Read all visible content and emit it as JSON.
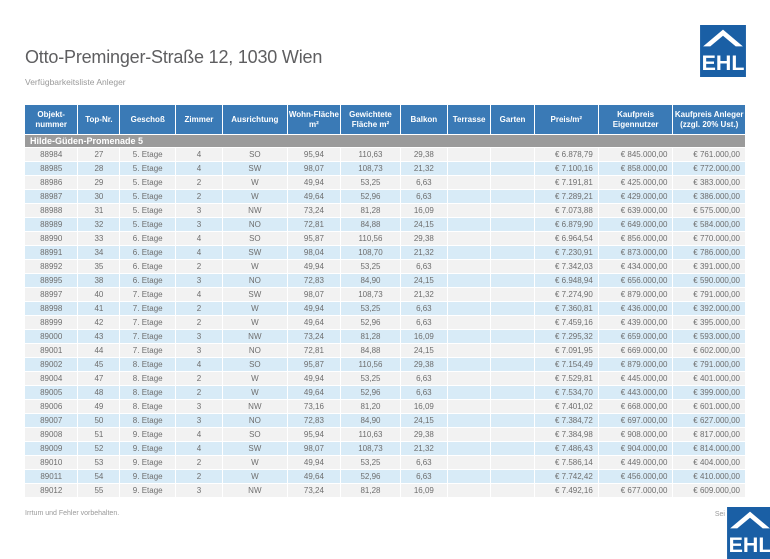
{
  "page": {
    "title": "Otto-Preminger-Straße 12, 1030 Wien",
    "subtitle": "Verfügbarkeitsliste Anleger",
    "footer_left": "Irrtum und Fehler vorbehalten.",
    "footer_right": "Sei",
    "logo_text": "EHL"
  },
  "colors": {
    "header_blue": "#3a7ab6",
    "section_gray": "#9b9b9b",
    "row_light": "#f2f2f2",
    "row_blue": "#d8ebf7",
    "logo_blue": "#1a5fa5"
  },
  "table": {
    "section": "Hilde-Güden-Promenade 5",
    "columns": [
      "Objekt-nummer",
      "Top-Nr.",
      "Geschoß",
      "Zimmer",
      "Ausrichtung",
      "Wohn-Fläche m²",
      "Gewichtete Fläche m²",
      "Balkon",
      "Terrasse",
      "Garten",
      "Preis/m²",
      "Kaufpreis Eigennutzer",
      "Kaufpreis Anleger (zzgl. 20% Ust.)"
    ],
    "column_keys": [
      "objektnummer",
      "top_nr",
      "geschoss",
      "zimmer",
      "ausrichtung",
      "wohnflaeche_m2",
      "gewichtete_flaeche_m2",
      "balkon",
      "terrasse",
      "garten",
      "preis_m2",
      "kaufpreis_eigennutzer",
      "kaufpreis_anleger"
    ],
    "rows": [
      [
        "88984",
        "27",
        "5. Etage",
        "4",
        "SO",
        "95,94",
        "110,63",
        "29,38",
        "",
        "",
        "€ 6.878,79",
        "€ 845.000,00",
        "€ 761.000,00"
      ],
      [
        "88985",
        "28",
        "5. Etage",
        "4",
        "SW",
        "98,07",
        "108,73",
        "21,32",
        "",
        "",
        "€ 7.100,16",
        "€ 858.000,00",
        "€ 772.000,00"
      ],
      [
        "88986",
        "29",
        "5. Etage",
        "2",
        "W",
        "49,94",
        "53,25",
        "6,63",
        "",
        "",
        "€ 7.191,81",
        "€ 425.000,00",
        "€ 383.000,00"
      ],
      [
        "88987",
        "30",
        "5. Etage",
        "2",
        "W",
        "49,64",
        "52,96",
        "6,63",
        "",
        "",
        "€ 7.289,21",
        "€ 429.000,00",
        "€ 386.000,00"
      ],
      [
        "88988",
        "31",
        "5. Etage",
        "3",
        "NW",
        "73,24",
        "81,28",
        "16,09",
        "",
        "",
        "€ 7.073,88",
        "€ 639.000,00",
        "€ 575.000,00"
      ],
      [
        "88989",
        "32",
        "5. Etage",
        "3",
        "NO",
        "72,81",
        "84,88",
        "24,15",
        "",
        "",
        "€ 6.879,90",
        "€ 649.000,00",
        "€ 584.000,00"
      ],
      [
        "88990",
        "33",
        "6. Etage",
        "4",
        "SO",
        "95,87",
        "110,56",
        "29,38",
        "",
        "",
        "€ 6.964,54",
        "€ 856.000,00",
        "€ 770.000,00"
      ],
      [
        "88991",
        "34",
        "6. Etage",
        "4",
        "SW",
        "98,04",
        "108,70",
        "21,32",
        "",
        "",
        "€ 7.230,91",
        "€ 873.000,00",
        "€ 786.000,00"
      ],
      [
        "88992",
        "35",
        "6. Etage",
        "2",
        "W",
        "49,94",
        "53,25",
        "6,63",
        "",
        "",
        "€ 7.342,03",
        "€ 434.000,00",
        "€ 391.000,00"
      ],
      [
        "88995",
        "38",
        "6. Etage",
        "3",
        "NO",
        "72,83",
        "84,90",
        "24,15",
        "",
        "",
        "€ 6.948,94",
        "€ 656.000,00",
        "€ 590.000,00"
      ],
      [
        "88997",
        "40",
        "7. Etage",
        "4",
        "SW",
        "98,07",
        "108,73",
        "21,32",
        "",
        "",
        "€ 7.274,90",
        "€ 879.000,00",
        "€ 791.000,00"
      ],
      [
        "88998",
        "41",
        "7. Etage",
        "2",
        "W",
        "49,94",
        "53,25",
        "6,63",
        "",
        "",
        "€ 7.360,81",
        "€ 436.000,00",
        "€ 392.000,00"
      ],
      [
        "88999",
        "42",
        "7. Etage",
        "2",
        "W",
        "49,64",
        "52,96",
        "6,63",
        "",
        "",
        "€ 7.459,16",
        "€ 439.000,00",
        "€ 395.000,00"
      ],
      [
        "89000",
        "43",
        "7. Etage",
        "3",
        "NW",
        "73,24",
        "81,28",
        "16,09",
        "",
        "",
        "€ 7.295,32",
        "€ 659.000,00",
        "€ 593.000,00"
      ],
      [
        "89001",
        "44",
        "7. Etage",
        "3",
        "NO",
        "72,81",
        "84,88",
        "24,15",
        "",
        "",
        "€ 7.091,95",
        "€ 669.000,00",
        "€ 602.000,00"
      ],
      [
        "89002",
        "45",
        "8. Etage",
        "4",
        "SO",
        "95,87",
        "110,56",
        "29,38",
        "",
        "",
        "€ 7.154,49",
        "€ 879.000,00",
        "€ 791.000,00"
      ],
      [
        "89004",
        "47",
        "8. Etage",
        "2",
        "W",
        "49,94",
        "53,25",
        "6,63",
        "",
        "",
        "€ 7.529,81",
        "€ 445.000,00",
        "€ 401.000,00"
      ],
      [
        "89005",
        "48",
        "8. Etage",
        "2",
        "W",
        "49,64",
        "52,96",
        "6,63",
        "",
        "",
        "€ 7.534,70",
        "€ 443.000,00",
        "€ 399.000,00"
      ],
      [
        "89006",
        "49",
        "8. Etage",
        "3",
        "NW",
        "73,16",
        "81,20",
        "16,09",
        "",
        "",
        "€ 7.401,02",
        "€ 668.000,00",
        "€ 601.000,00"
      ],
      [
        "89007",
        "50",
        "8. Etage",
        "3",
        "NO",
        "72,83",
        "84,90",
        "24,15",
        "",
        "",
        "€ 7.384,72",
        "€ 697.000,00",
        "€ 627.000,00"
      ],
      [
        "89008",
        "51",
        "9. Etage",
        "4",
        "SO",
        "95,94",
        "110,63",
        "29,38",
        "",
        "",
        "€ 7.384,98",
        "€ 908.000,00",
        "€ 817.000,00"
      ],
      [
        "89009",
        "52",
        "9. Etage",
        "4",
        "SW",
        "98,07",
        "108,73",
        "21,32",
        "",
        "",
        "€ 7.486,43",
        "€ 904.000,00",
        "€ 814.000,00"
      ],
      [
        "89010",
        "53",
        "9. Etage",
        "2",
        "W",
        "49,94",
        "53,25",
        "6,63",
        "",
        "",
        "€ 7.586,14",
        "€ 449.000,00",
        "€ 404.000,00"
      ],
      [
        "89011",
        "54",
        "9. Etage",
        "2",
        "W",
        "49,64",
        "52,96",
        "6,63",
        "",
        "",
        "€ 7.742,42",
        "€ 456.000,00",
        "€ 410.000,00"
      ],
      [
        "89012",
        "55",
        "9. Etage",
        "3",
        "NW",
        "73,24",
        "81,28",
        "16,09",
        "",
        "",
        "€ 7.492,16",
        "€ 677.000,00",
        "€ 609.000,00"
      ]
    ]
  }
}
